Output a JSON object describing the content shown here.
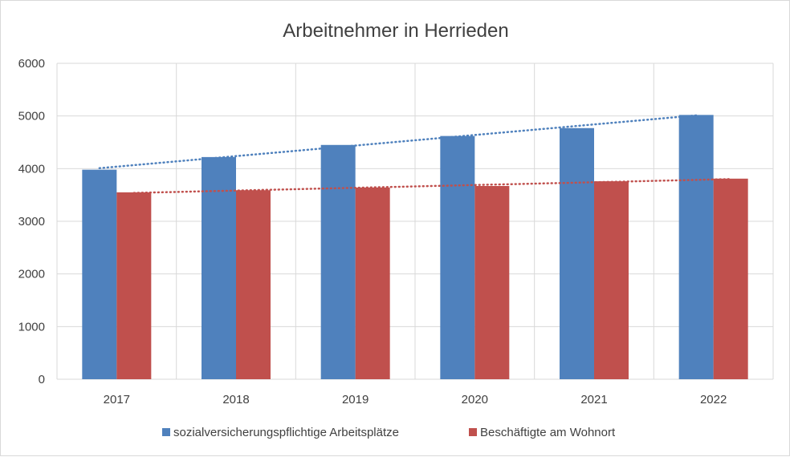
{
  "chart_data": {
    "type": "bar",
    "title": "Arbeitnehmer in Herrieden",
    "xlabel": "",
    "ylabel": "",
    "categories": [
      "2017",
      "2018",
      "2019",
      "2020",
      "2021",
      "2022"
    ],
    "ylim": [
      0,
      6000
    ],
    "yticks": [
      0,
      1000,
      2000,
      3000,
      4000,
      5000,
      6000
    ],
    "grid": true,
    "legend_position": "bottom",
    "series": [
      {
        "name": "sozialversicherungspflichtige Arbeitsplätze",
        "color": "#4f81bd",
        "values": [
          3980,
          4220,
          4450,
          4620,
          4770,
          5020
        ],
        "trendline": {
          "type": "linear",
          "style": "dotted"
        }
      },
      {
        "name": "Beschäftigte am Wohnort",
        "color": "#c0504d",
        "values": [
          3550,
          3590,
          3640,
          3670,
          3760,
          3810
        ],
        "trendline": {
          "type": "linear",
          "style": "dotted"
        }
      }
    ]
  }
}
